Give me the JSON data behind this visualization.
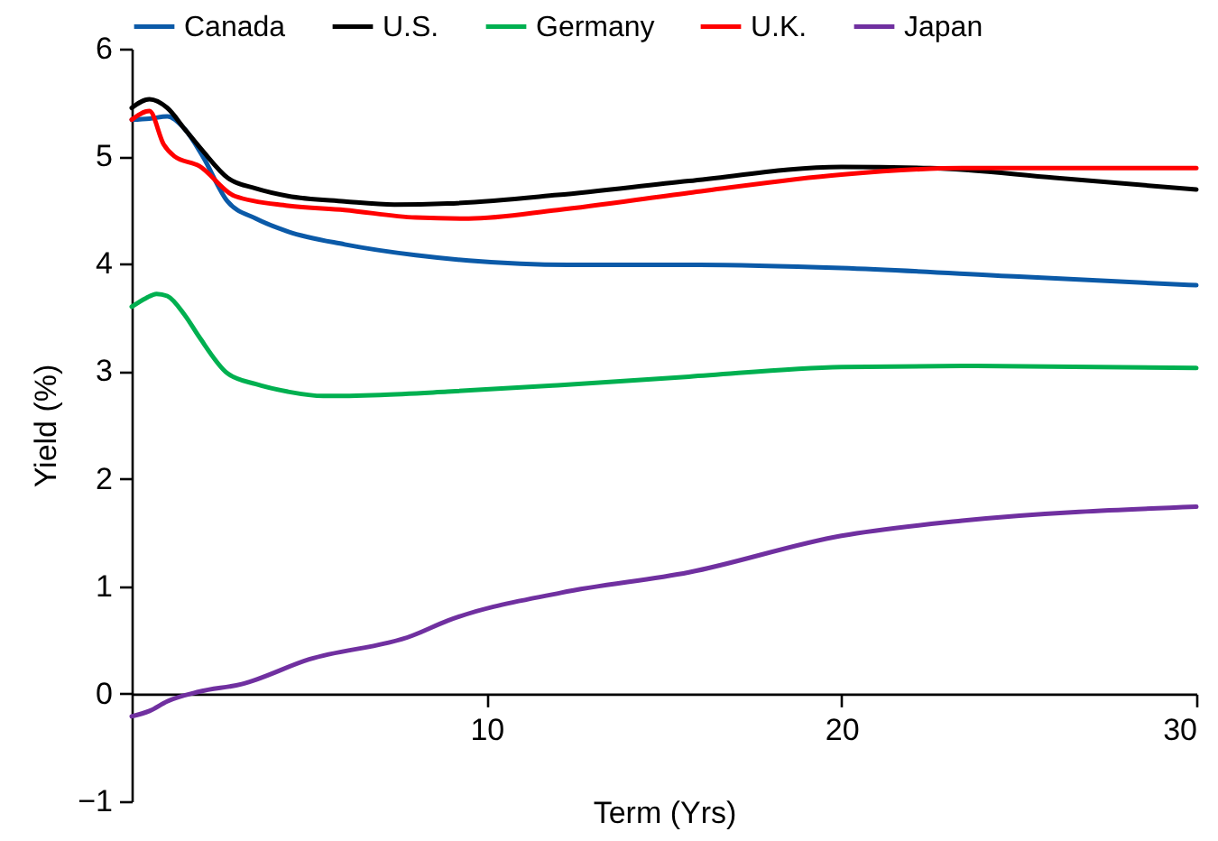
{
  "chart_data": {
    "type": "line",
    "xlabel": "Term (Yrs)",
    "ylabel": "Yield (%)",
    "xlim": [
      0,
      30
    ],
    "xticks": [
      10,
      20,
      30
    ],
    "ylim": [
      -1,
      6
    ],
    "yticks": [
      -1,
      0,
      1,
      2,
      3,
      4,
      5,
      6
    ],
    "grid": false,
    "legend": "top",
    "marker": "none",
    "line_style": "solid",
    "series": [
      {
        "name": "Canada",
        "color": "#0b5aa8",
        "x": [
          0,
          0.5,
          1,
          1.5,
          2,
          2.7,
          3.5,
          4.4,
          6,
          8,
          9.5,
          12.3,
          16,
          20,
          25,
          30
        ],
        "values": [
          5.34,
          5.35,
          5.37,
          5.25,
          5.0,
          4.58,
          4.42,
          4.3,
          4.18,
          4.08,
          4.03,
          3.99,
          3.99,
          3.96,
          3.88,
          3.8
        ]
      },
      {
        "name": "U.S.",
        "color": "#000000",
        "x": [
          0,
          0.5,
          1,
          1.5,
          2,
          2.7,
          3.5,
          4.4,
          6,
          7.4,
          8.9,
          12,
          15.7,
          20,
          22.5,
          26,
          30
        ],
        "values": [
          5.45,
          5.53,
          5.45,
          5.25,
          5.05,
          4.8,
          4.7,
          4.63,
          4.58,
          4.55,
          4.56,
          4.64,
          4.77,
          4.9,
          4.89,
          4.8,
          4.69
        ]
      },
      {
        "name": "Germany",
        "color": "#00b050",
        "x": [
          0,
          0.4,
          0.7,
          1,
          1.5,
          1.9,
          2.7,
          3.5,
          4.4,
          5.4,
          7,
          8.9,
          12,
          15.7,
          20,
          23.4,
          30
        ],
        "values": [
          3.6,
          3.68,
          3.72,
          3.7,
          3.52,
          3.32,
          2.98,
          2.88,
          2.81,
          2.77,
          2.78,
          2.81,
          2.87,
          2.95,
          3.04,
          3.05,
          3.03
        ]
      },
      {
        "name": "U.K.",
        "color": "#ff0000",
        "x": [
          0,
          0.5,
          0.9,
          1.2,
          1.9,
          2.9,
          4.4,
          6,
          8,
          9.5,
          12,
          15.7,
          20,
          23.4,
          30
        ],
        "values": [
          5.34,
          5.42,
          5.11,
          5.0,
          4.91,
          4.63,
          4.54,
          4.5,
          4.43,
          4.42,
          4.5,
          4.66,
          4.83,
          4.89,
          4.89
        ]
      },
      {
        "name": "Japan",
        "color": "#7030a0",
        "x": [
          0,
          0.5,
          1,
          1.9,
          3.1,
          5,
          7.9,
          8.9,
          12.1,
          15.7,
          20,
          23.4,
          30
        ],
        "values": [
          -0.21,
          -0.16,
          -0.07,
          0.02,
          0.09,
          0.32,
          0.54,
          0.68,
          0.94,
          1.13,
          1.47,
          1.61,
          1.74
        ]
      }
    ]
  }
}
